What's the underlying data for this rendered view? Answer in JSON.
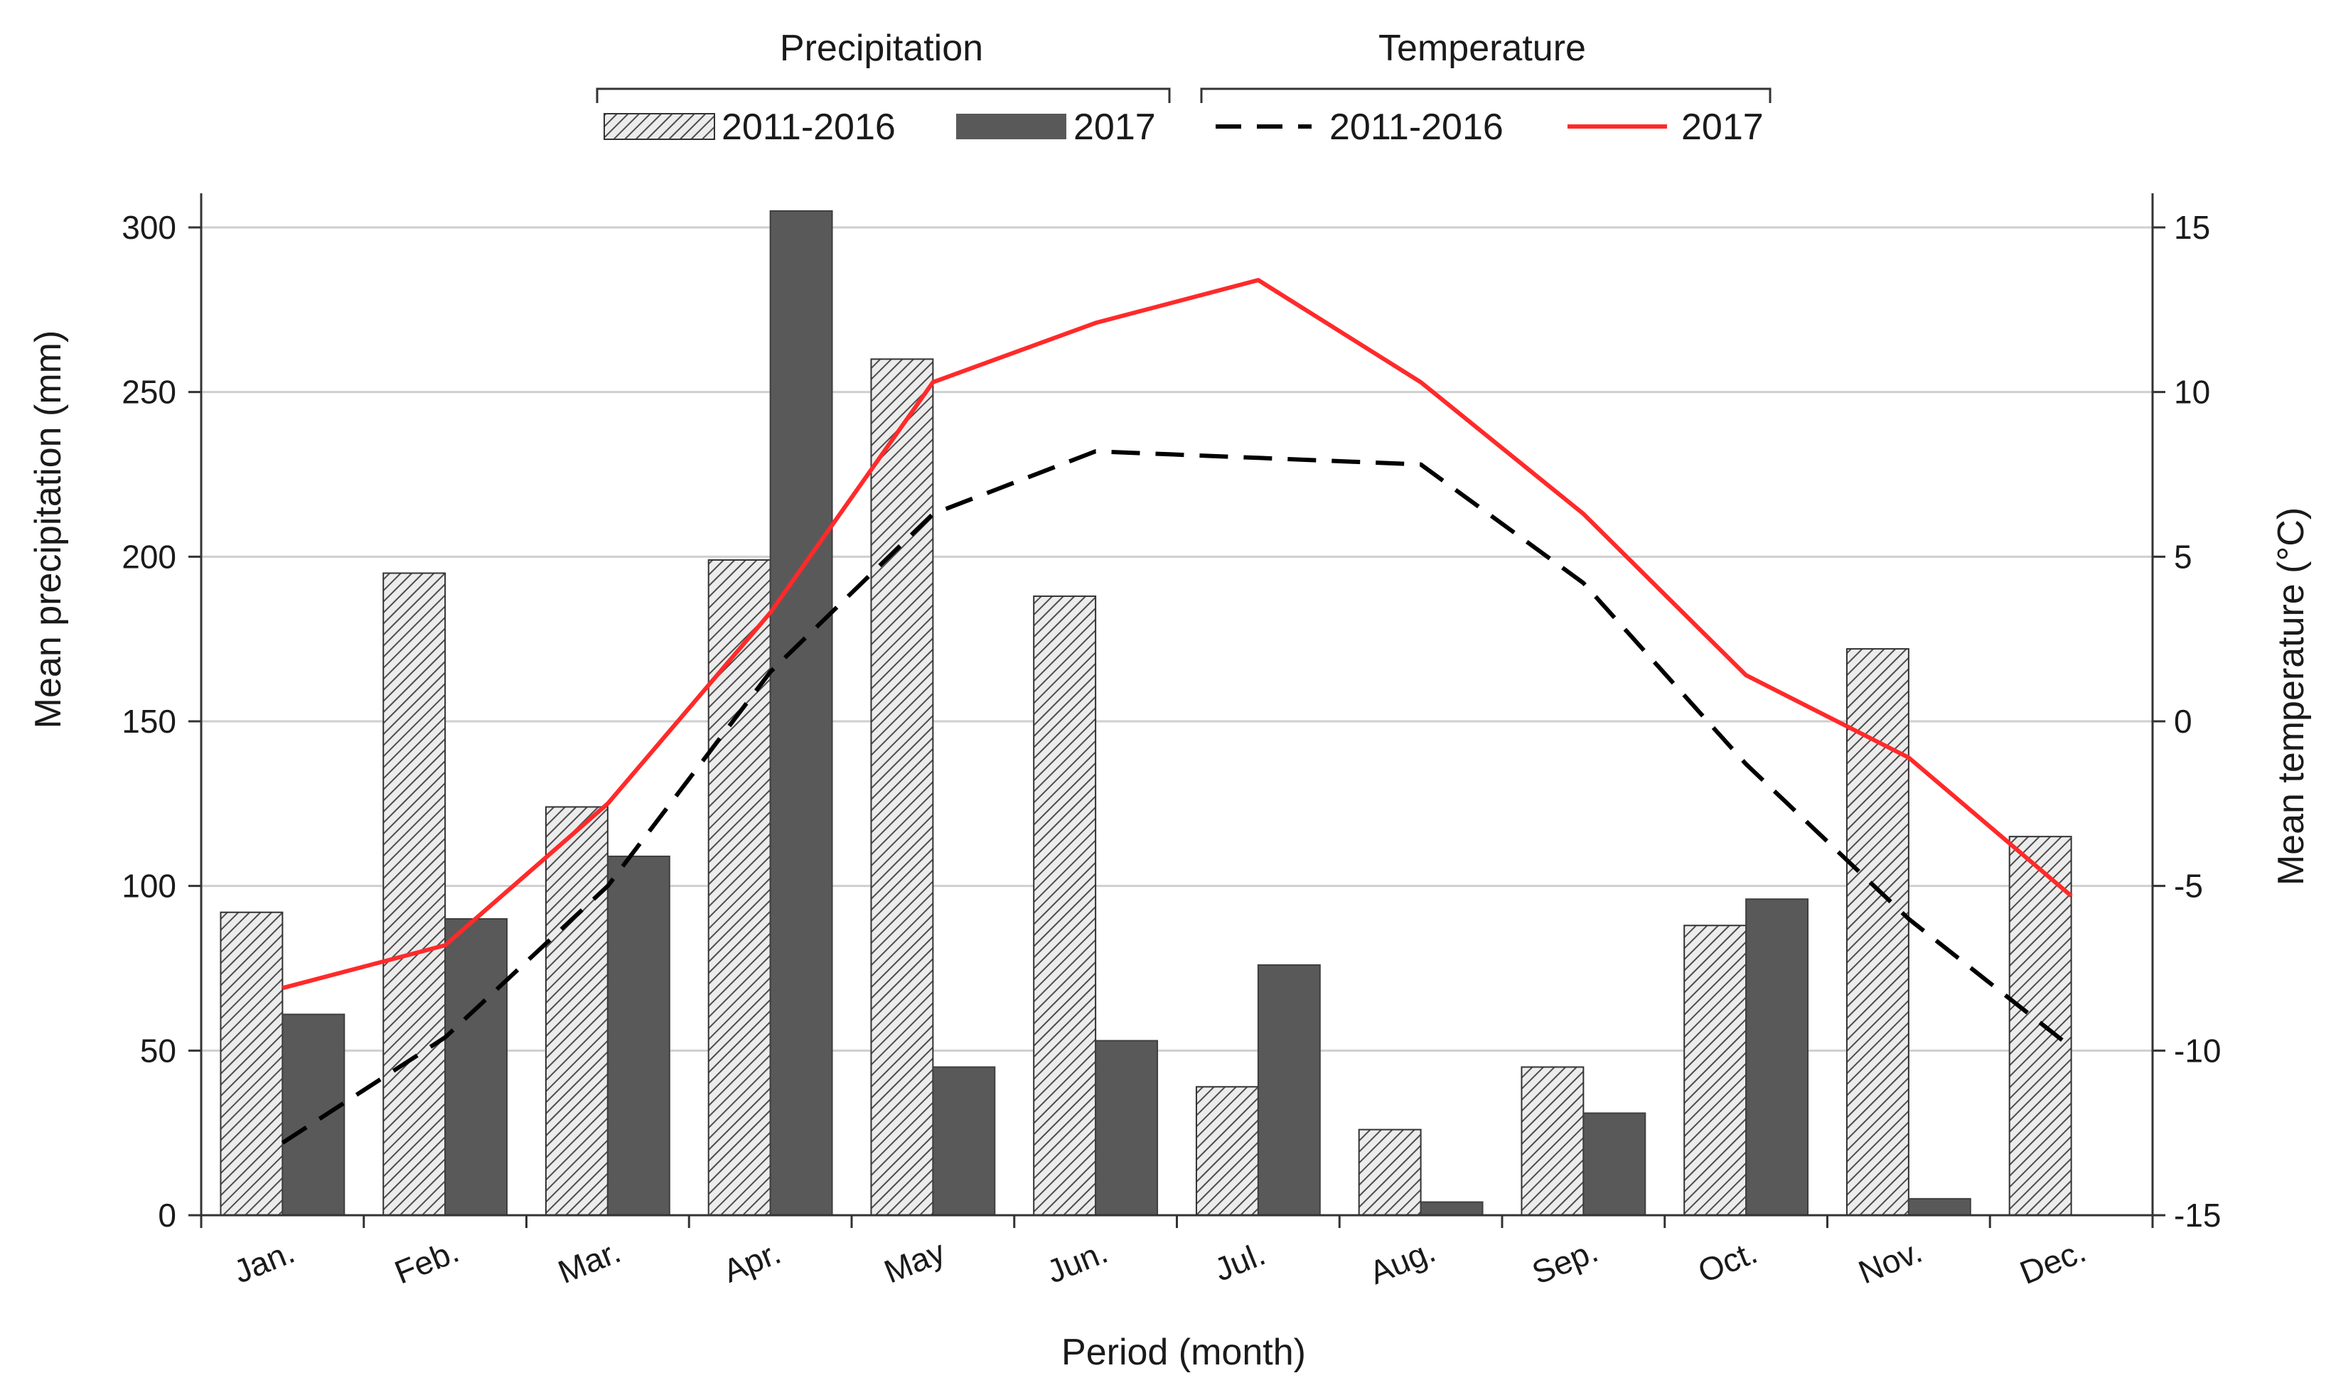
{
  "chart_data": {
    "type": "bar+line",
    "xlabel": "Period (month)",
    "ylabel_left": "Mean precipitation (mm)",
    "ylabel_right": "Mean temperature (°C)",
    "categories": [
      "Jan.",
      "Feb.",
      "Mar.",
      "Apr.",
      "May",
      "Jun.",
      "Jul.",
      "Aug.",
      "Sep.",
      "Oct.",
      "Nov.",
      "Dec."
    ],
    "ylim_left": [
      0,
      300
    ],
    "yticks_left": [
      0,
      50,
      100,
      150,
      200,
      250,
      300
    ],
    "ylim_right": [
      -15,
      15
    ],
    "yticks_right": [
      -15,
      -10,
      -5,
      0,
      5,
      10,
      15
    ],
    "grid": true,
    "legend_groups": [
      {
        "title": "Precipitation",
        "entries": [
          "2011-2016",
          "2017"
        ]
      },
      {
        "title": "Temperature",
        "entries": [
          "2011-2016",
          "2017"
        ]
      }
    ],
    "bar_series": [
      {
        "name": "2011-2016",
        "group": "Precipitation",
        "style": "hatched",
        "color": "#d9d9d9",
        "values": [
          92,
          195,
          124,
          199,
          260,
          188,
          39,
          26,
          45,
          88,
          172,
          115
        ]
      },
      {
        "name": "2017",
        "group": "Precipitation",
        "style": "solid",
        "color": "#595959",
        "values": [
          61,
          90,
          109,
          305,
          45,
          53,
          76,
          4,
          31,
          96,
          5,
          0
        ]
      }
    ],
    "line_series": [
      {
        "name": "2011-2016",
        "group": "Temperature",
        "style": "dashed",
        "color": "#000000",
        "values": [
          -12.8,
          -9.6,
          -5.0,
          1.5,
          6.3,
          8.2,
          8.0,
          7.8,
          4.2,
          -1.3,
          -6.0,
          -9.9
        ]
      },
      {
        "name": "2017",
        "group": "Temperature",
        "style": "solid",
        "color": "#ff2a2a",
        "values": [
          -8.1,
          -6.8,
          -2.5,
          3.3,
          10.3,
          12.1,
          13.4,
          10.3,
          6.3,
          1.4,
          -1.1,
          -5.3
        ]
      }
    ]
  }
}
